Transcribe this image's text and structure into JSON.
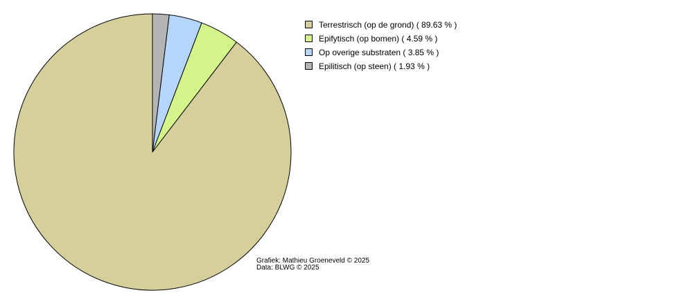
{
  "chart_data": {
    "type": "pie",
    "slices": [
      {
        "label": "Terrestrisch (op de grond)",
        "value": 89.63,
        "display": "Terrestrisch (op de grond) ( 89.63 % )",
        "color": "#d6cf9c"
      },
      {
        "label": "Epifytisch (op bomen)",
        "value": 4.59,
        "display": "Epifytisch (op bomen) ( 4.59 % )",
        "color": "#d4f58c"
      },
      {
        "label": "Op overige substraten",
        "value": 3.85,
        "display": "Op overige substraten ( 3.85 % )",
        "color": "#b5d5fa"
      },
      {
        "label": "Epilitisch (op steen)",
        "value": 1.93,
        "display": "Epilitisch (op steen) ( 1.93 % )",
        "color": "#b4b4b4"
      }
    ],
    "start_angle": "top",
    "direction": "counterclockwise",
    "legend_placement": "top-right"
  },
  "credits": {
    "line1": "Grafiek: Mathieu Groeneveld © 2025",
    "line2": "Data: BLWG © 2025"
  }
}
